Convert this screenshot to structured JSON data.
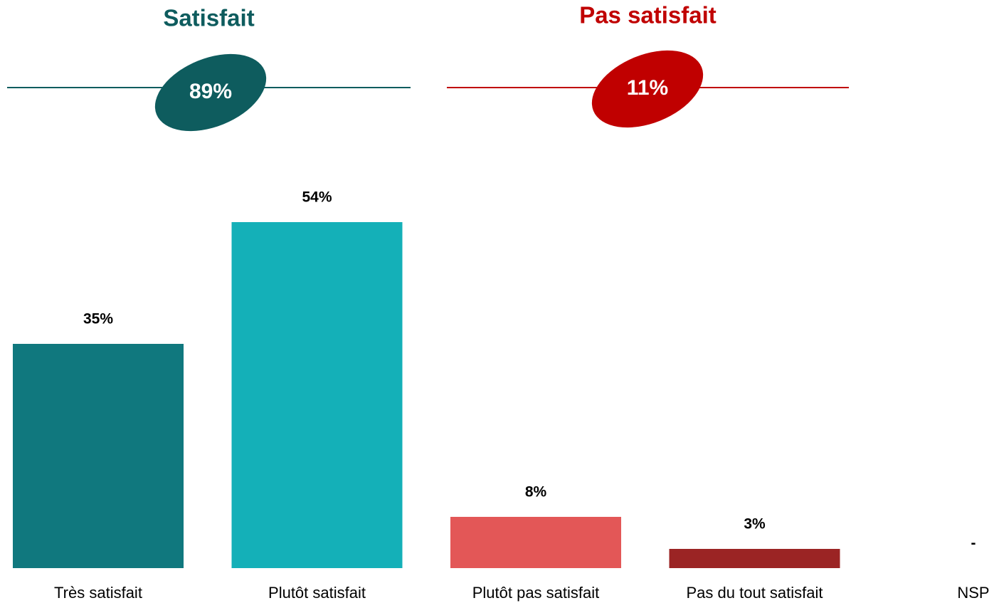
{
  "chart_data": {
    "type": "bar",
    "categories": [
      "Très satisfait",
      "Plutôt satisfait",
      "Plutôt pas satisfait",
      "Pas du tout satisfait",
      "NSP"
    ],
    "values": [
      35,
      54,
      8,
      3,
      null
    ],
    "value_labels": [
      "35%",
      "54%",
      "8%",
      "3%",
      "-"
    ],
    "colors": [
      "#10787e",
      "#14b0b8",
      "#e35757",
      "#9b2424",
      "#888888"
    ],
    "ylim": [
      0,
      60
    ],
    "groups": [
      {
        "title": "Satisfait",
        "value": 89,
        "value_label": "89%",
        "color": "#0e5c5e"
      },
      {
        "title": "Pas satisfait",
        "value": 11,
        "value_label": "11%",
        "color": "#c00000"
      }
    ]
  }
}
